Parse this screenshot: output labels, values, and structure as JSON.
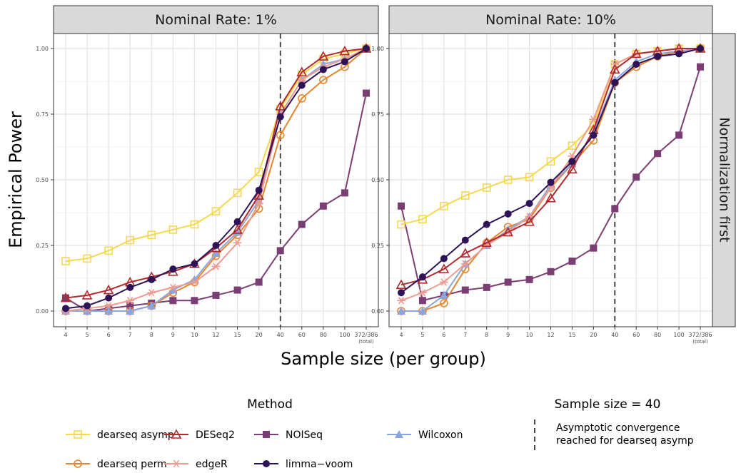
{
  "chart_data": {
    "type": "line",
    "ylabel": "Empirical Power",
    "xlabel": "Sample size (per group)",
    "row_strip": "Normalization first",
    "categories": [
      "4",
      "5",
      "6",
      "7",
      "8",
      "9",
      "10",
      "12",
      "15",
      "20",
      "40",
      "60",
      "80",
      "100",
      "372/386"
    ],
    "category_sublabel": {
      "372/386": "(total)"
    },
    "ylim": [
      0,
      1
    ],
    "yticks": [
      "0.00",
      "0.25",
      "0.50",
      "0.75",
      "1.00"
    ],
    "grid": true,
    "vline_at": "40",
    "panels": [
      {
        "title": "Nominal Rate: 1%",
        "series": [
          {
            "name": "dearseq asymp",
            "values": [
              0.19,
              0.2,
              0.23,
              0.27,
              0.29,
              0.31,
              0.33,
              0.38,
              0.45,
              0.53,
              0.77,
              0.9,
              0.96,
              0.98,
              1.0
            ]
          },
          {
            "name": "dearseq perm",
            "values": [
              0.0,
              0.0,
              0.0,
              0.0,
              0.02,
              0.07,
              0.11,
              0.21,
              0.29,
              0.39,
              0.67,
              0.81,
              0.88,
              0.93,
              1.0
            ]
          },
          {
            "name": "DESeq2",
            "values": [
              0.05,
              0.06,
              0.08,
              0.11,
              0.13,
              0.15,
              0.18,
              0.24,
              0.31,
              0.44,
              0.78,
              0.91,
              0.97,
              0.99,
              1.0
            ]
          },
          {
            "name": "edgeR",
            "values": [
              0.0,
              0.01,
              0.02,
              0.04,
              0.07,
              0.09,
              0.11,
              0.17,
              0.26,
              0.41,
              0.75,
              0.88,
              0.93,
              0.96,
              1.0
            ]
          },
          {
            "name": "NOISeq",
            "values": [
              0.05,
              0.0,
              0.01,
              0.02,
              0.03,
              0.04,
              0.04,
              0.06,
              0.08,
              0.11,
              0.23,
              0.33,
              0.4,
              0.45,
              0.83
            ]
          },
          {
            "name": "limma−voom",
            "values": [
              0.01,
              0.02,
              0.05,
              0.09,
              0.12,
              0.16,
              0.18,
              0.25,
              0.34,
              0.46,
              0.74,
              0.86,
              0.92,
              0.95,
              1.0
            ]
          },
          {
            "name": "Wilcoxon",
            "values": [
              0.0,
              0.0,
              0.0,
              0.0,
              0.02,
              0.08,
              0.12,
              0.22,
              0.3,
              0.42,
              0.75,
              0.88,
              0.94,
              0.96,
              1.0
            ]
          }
        ]
      },
      {
        "title": "Nominal Rate: 10%",
        "series": [
          {
            "name": "dearseq asymp",
            "values": [
              0.33,
              0.35,
              0.4,
              0.44,
              0.47,
              0.5,
              0.51,
              0.57,
              0.63,
              0.71,
              0.94,
              0.98,
              0.99,
              1.0,
              1.0
            ]
          },
          {
            "name": "dearseq perm",
            "values": [
              0.0,
              0.0,
              0.03,
              0.16,
              0.26,
              0.32,
              0.35,
              0.47,
              0.56,
              0.65,
              0.87,
              0.93,
              0.97,
              0.99,
              1.0
            ]
          },
          {
            "name": "DESeq2",
            "values": [
              0.1,
              0.12,
              0.16,
              0.22,
              0.26,
              0.3,
              0.34,
              0.43,
              0.54,
              0.69,
              0.92,
              0.98,
              0.99,
              1.0,
              1.0
            ]
          },
          {
            "name": "edgeR",
            "values": [
              0.04,
              0.07,
              0.11,
              0.18,
              0.25,
              0.3,
              0.36,
              0.47,
              0.59,
              0.73,
              0.94,
              0.98,
              0.99,
              1.0,
              1.0
            ]
          },
          {
            "name": "NOISeq",
            "values": [
              0.4,
              0.04,
              0.06,
              0.08,
              0.09,
              0.11,
              0.12,
              0.15,
              0.19,
              0.24,
              0.39,
              0.51,
              0.6,
              0.67,
              0.93
            ]
          },
          {
            "name": "limma−voom",
            "values": [
              0.07,
              0.13,
              0.2,
              0.27,
              0.33,
              0.37,
              0.41,
              0.49,
              0.57,
              0.67,
              0.87,
              0.94,
              0.97,
              0.98,
              1.0
            ]
          },
          {
            "name": "Wilcoxon",
            "values": [
              0.0,
              0.0,
              0.06,
              0.18,
              0.25,
              0.31,
              0.36,
              0.48,
              0.56,
              0.68,
              0.88,
              0.95,
              0.98,
              0.99,
              1.0
            ]
          }
        ]
      }
    ],
    "legend": {
      "title": "Method",
      "entries": [
        {
          "name": "dearseq asymp",
          "color": "#f5d84c",
          "shape": "open-square"
        },
        {
          "name": "DESeq2",
          "color": "#b2282d",
          "shape": "open-triangle"
        },
        {
          "name": "NOISeq",
          "color": "#7b3e74",
          "shape": "filled-square"
        },
        {
          "name": "Wilcoxon",
          "color": "#8aa6dc",
          "shape": "filled-triangle"
        },
        {
          "name": "dearseq perm",
          "color": "#e6852d",
          "shape": "open-circle"
        },
        {
          "name": "edgeR",
          "color": "#ef9a8f",
          "shape": "asterisk"
        },
        {
          "name": "limma−voom",
          "color": "#2e1457",
          "shape": "filled-circle"
        }
      ],
      "vline_legend": {
        "title": "Sample size = 40",
        "label_line1": "Asymptotic convergence",
        "label_line2": "reached for dearseq asymp"
      }
    }
  }
}
